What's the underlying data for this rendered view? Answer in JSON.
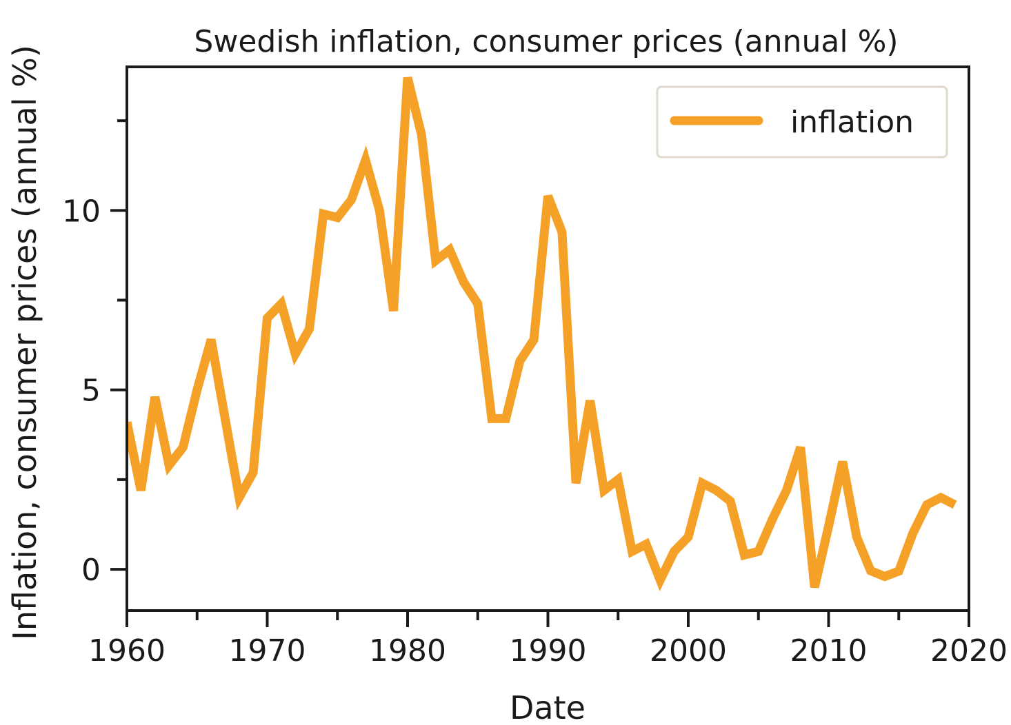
{
  "chart_data": {
    "type": "line",
    "title": "Swedish inflation, consumer prices (annual %)",
    "xlabel": "Date",
    "ylabel": "Inflation, consumer prices (annual %)",
    "xlim": [
      1960,
      2020
    ],
    "ylim": [
      -1.15,
      14.0
    ],
    "xticks": [
      1960,
      1970,
      1980,
      1990,
      2000,
      2010,
      2020
    ],
    "yticks": [
      0,
      5,
      10
    ],
    "legend_position": "top-right",
    "grid": false,
    "series": [
      {
        "name": "inflation",
        "color": "#F5A128",
        "x": [
          1960,
          1961,
          1962,
          1963,
          1964,
          1965,
          1966,
          1967,
          1968,
          1969,
          1970,
          1971,
          1972,
          1973,
          1974,
          1975,
          1976,
          1977,
          1978,
          1979,
          1980,
          1981,
          1982,
          1983,
          1984,
          1985,
          1986,
          1987,
          1988,
          1989,
          1990,
          1991,
          1992,
          1993,
          1994,
          1995,
          1996,
          1997,
          1998,
          1999,
          2000,
          2001,
          2002,
          2003,
          2004,
          2005,
          2006,
          2007,
          2008,
          2009,
          2010,
          2011,
          2012,
          2013,
          2014,
          2015,
          2016,
          2017,
          2018,
          2019
        ],
        "y": [
          4.1,
          2.2,
          4.8,
          2.9,
          3.4,
          5.0,
          6.4,
          4.2,
          2.0,
          2.7,
          7.0,
          7.4,
          6.0,
          6.7,
          9.9,
          9.8,
          10.3,
          11.4,
          10.0,
          7.2,
          13.7,
          12.1,
          8.6,
          8.9,
          8.0,
          7.4,
          4.2,
          4.2,
          5.8,
          6.4,
          10.4,
          9.4,
          2.4,
          4.7,
          2.2,
          2.5,
          0.5,
          0.7,
          -0.3,
          0.5,
          0.9,
          2.4,
          2.2,
          1.9,
          0.4,
          0.5,
          1.4,
          2.2,
          3.4,
          -0.5,
          1.2,
          3.0,
          0.9,
          -0.04,
          -0.2,
          -0.05,
          1.0,
          1.8,
          2.0,
          1.8
        ]
      }
    ]
  }
}
